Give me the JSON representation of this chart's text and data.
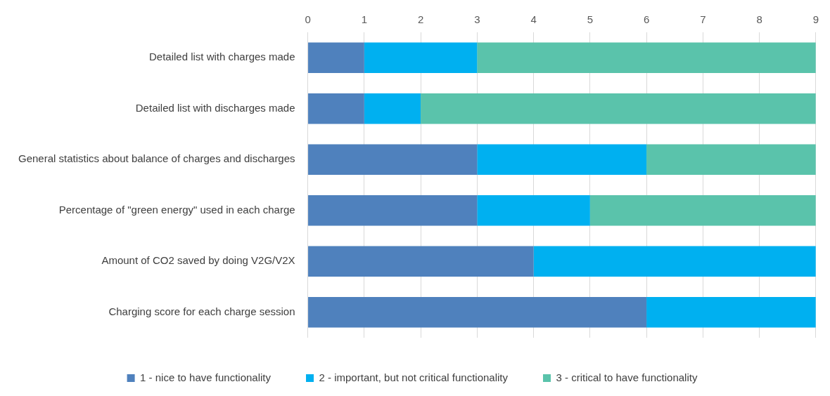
{
  "chart_data": {
    "type": "bar",
    "orientation": "horizontal",
    "stacked": true,
    "categories": [
      "Detailed list with charges made",
      "Detailed list with discharges made",
      "General statistics about balance of charges and discharges",
      "Percentage of \"green energy\" used in each charge",
      "Amount of CO2 saved by doing V2G/V2X",
      "Charging score for each charge session"
    ],
    "series": [
      {
        "name": "1 - nice to have functionality",
        "color": "#4f81bd",
        "values": [
          1,
          1,
          3,
          3,
          4,
          6
        ]
      },
      {
        "name": "2 - important, but not critical functionality",
        "color": "#00b0f0",
        "values": [
          2,
          1,
          3,
          2,
          5,
          3
        ]
      },
      {
        "name": "3 - critical to have functionality",
        "color": "#5ac3ab",
        "values": [
          6,
          7,
          3,
          4,
          0,
          0
        ]
      }
    ],
    "xlim": [
      0,
      9
    ],
    "xticks": [
      0,
      1,
      2,
      3,
      4,
      5,
      6,
      7,
      8,
      9
    ],
    "grid": "x",
    "legend": "bottom"
  }
}
